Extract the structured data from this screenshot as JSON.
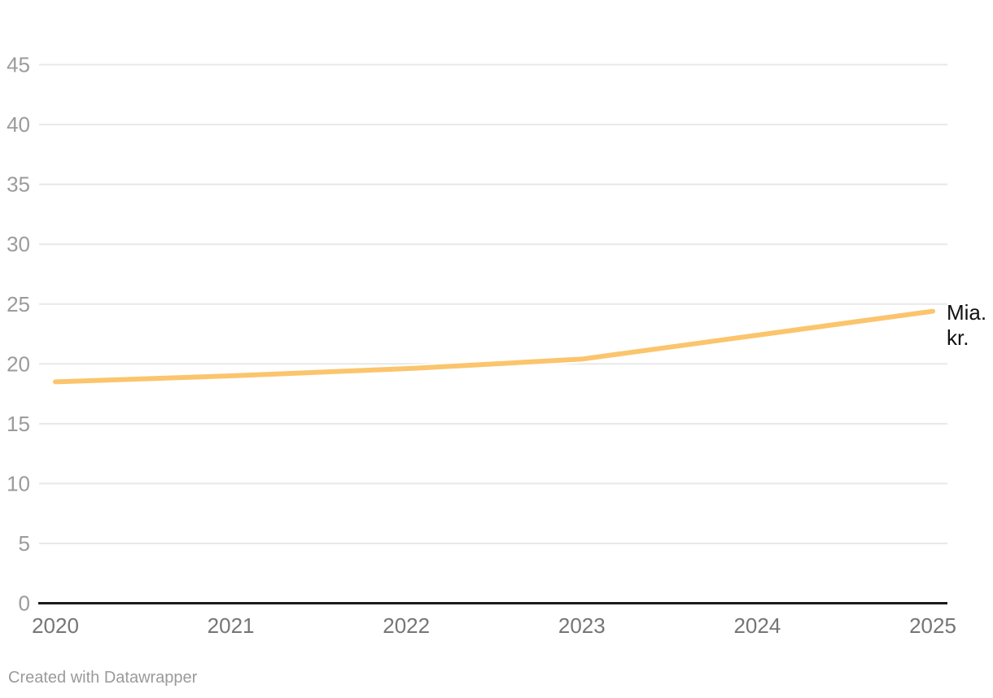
{
  "chart_data": {
    "type": "line",
    "title": "",
    "xlabel": "",
    "ylabel": "",
    "x": [
      2020,
      2021,
      2022,
      2023,
      2024,
      2025
    ],
    "series": [
      {
        "name": "Mia. kr.",
        "values": [
          18.5,
          19.0,
          19.6,
          20.4,
          22.4,
          24.4
        ]
      }
    ],
    "series_label": "Mia. kr.",
    "ylim": [
      0,
      47
    ],
    "y_ticks": [
      0,
      5,
      10,
      15,
      20,
      25,
      30,
      35,
      40,
      45
    ],
    "grid": true,
    "legend_position": "line-end-right"
  },
  "footer": {
    "attribution": "Created with Datawrapper"
  },
  "colors": {
    "line": "#FBC56D",
    "line_halo": "#FFFFFF",
    "grid": "#E8E8E8",
    "baseline": "#1A1A1A",
    "y_tick_label": "#9B9B9B",
    "x_tick_label": "#757575",
    "series_label": "#111111",
    "footer_text": "#9A9A9A",
    "background": "#FFFFFF"
  }
}
